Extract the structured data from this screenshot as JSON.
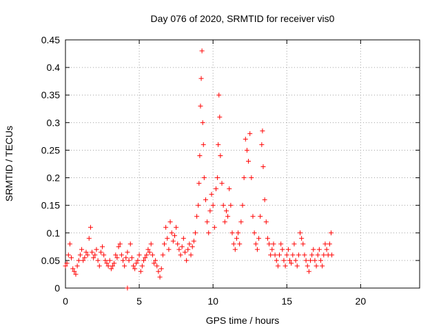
{
  "chart_data": {
    "type": "scatter",
    "title": "Day 076 of 2020, SRMTID for receiver vis0",
    "xlabel": "GPS time / hours",
    "ylabel": "SRMTID / TECUs",
    "xlim": [
      0,
      24
    ],
    "ylim": [
      0,
      0.45
    ],
    "xticks": [
      "0",
      "5",
      "10",
      "15",
      "20"
    ],
    "xtick_values": [
      0,
      5,
      10,
      15,
      20
    ],
    "yticks": [
      "0",
      "0.05",
      "0.1",
      "0.15",
      "0.2",
      "0.25",
      "0.3",
      "0.35",
      "0.4",
      "0.45"
    ],
    "ytick_values": [
      0,
      0.05,
      0.1,
      0.15,
      0.2,
      0.25,
      0.3,
      0.35,
      0.4,
      0.45
    ],
    "grid": true,
    "marker": "plus",
    "color": "#ff0000",
    "series": [
      {
        "name": "vis0",
        "points": [
          [
            0.0,
            0.04
          ],
          [
            0.1,
            0.045
          ],
          [
            0.2,
            0.06
          ],
          [
            0.3,
            0.08
          ],
          [
            0.4,
            0.055
          ],
          [
            0.5,
            0.035
          ],
          [
            0.6,
            0.03
          ],
          [
            0.7,
            0.025
          ],
          [
            0.8,
            0.04
          ],
          [
            0.9,
            0.05
          ],
          [
            1.0,
            0.06
          ],
          [
            1.1,
            0.07
          ],
          [
            1.2,
            0.05
          ],
          [
            1.3,
            0.055
          ],
          [
            1.4,
            0.065
          ],
          [
            1.5,
            0.06
          ],
          [
            1.6,
            0.09
          ],
          [
            1.7,
            0.11
          ],
          [
            1.8,
            0.065
          ],
          [
            1.9,
            0.055
          ],
          [
            2.0,
            0.06
          ],
          [
            2.1,
            0.07
          ],
          [
            2.2,
            0.05
          ],
          [
            2.3,
            0.04
          ],
          [
            2.4,
            0.065
          ],
          [
            2.5,
            0.075
          ],
          [
            2.6,
            0.06
          ],
          [
            2.7,
            0.05
          ],
          [
            2.8,
            0.045
          ],
          [
            2.9,
            0.04
          ],
          [
            3.0,
            0.05
          ],
          [
            3.1,
            0.035
          ],
          [
            3.2,
            0.04
          ],
          [
            3.3,
            0.045
          ],
          [
            3.4,
            0.06
          ],
          [
            3.5,
            0.055
          ],
          [
            3.6,
            0.075
          ],
          [
            3.7,
            0.08
          ],
          [
            3.8,
            0.06
          ],
          [
            3.9,
            0.05
          ],
          [
            4.0,
            0.04
          ],
          [
            4.1,
            0.055
          ],
          [
            4.2,
            0.065
          ],
          [
            4.3,
            0.05
          ],
          [
            4.4,
            0.08
          ],
          [
            4.5,
            0.055
          ],
          [
            4.6,
            0.04
          ],
          [
            4.7,
            0.035
          ],
          [
            4.8,
            0.045
          ],
          [
            4.9,
            0.05
          ],
          [
            5.0,
            0.06
          ],
          [
            5.1,
            0.03
          ],
          [
            5.2,
            0.04
          ],
          [
            5.3,
            0.05
          ],
          [
            5.4,
            0.055
          ],
          [
            5.5,
            0.06
          ],
          [
            5.6,
            0.07
          ],
          [
            5.7,
            0.065
          ],
          [
            5.8,
            0.08
          ],
          [
            5.9,
            0.06
          ],
          [
            6.0,
            0.045
          ],
          [
            6.1,
            0.05
          ],
          [
            6.2,
            0.04
          ],
          [
            6.3,
            0.03
          ],
          [
            6.4,
            0.02
          ],
          [
            6.5,
            0.035
          ],
          [
            6.6,
            0.06
          ],
          [
            6.7,
            0.08
          ],
          [
            6.8,
            0.11
          ],
          [
            6.9,
            0.09
          ],
          [
            7.0,
            0.07
          ],
          [
            7.1,
            0.12
          ],
          [
            7.2,
            0.1
          ],
          [
            7.3,
            0.085
          ],
          [
            7.4,
            0.095
          ],
          [
            7.5,
            0.11
          ],
          [
            7.6,
            0.08
          ],
          [
            7.7,
            0.07
          ],
          [
            7.8,
            0.06
          ],
          [
            7.9,
            0.075
          ],
          [
            8.0,
            0.09
          ],
          [
            8.1,
            0.065
          ],
          [
            8.2,
            0.05
          ],
          [
            8.3,
            0.07
          ],
          [
            8.4,
            0.08
          ],
          [
            8.5,
            0.06
          ],
          [
            8.6,
            0.075
          ],
          [
            8.7,
            0.085
          ],
          [
            8.8,
            0.1
          ],
          [
            8.9,
            0.13
          ],
          [
            9.0,
            0.15
          ],
          [
            9.05,
            0.19
          ],
          [
            9.1,
            0.24
          ],
          [
            9.15,
            0.33
          ],
          [
            9.2,
            0.38
          ],
          [
            9.25,
            0.43
          ],
          [
            9.3,
            0.3
          ],
          [
            9.35,
            0.26
          ],
          [
            9.4,
            0.2
          ],
          [
            9.5,
            0.16
          ],
          [
            9.6,
            0.12
          ],
          [
            9.7,
            0.1
          ],
          [
            9.8,
            0.14
          ],
          [
            9.9,
            0.17
          ],
          [
            10.0,
            0.15
          ],
          [
            10.1,
            0.11
          ],
          [
            10.2,
            0.18
          ],
          [
            10.3,
            0.2
          ],
          [
            10.35,
            0.26
          ],
          [
            10.4,
            0.35
          ],
          [
            10.45,
            0.31
          ],
          [
            10.5,
            0.24
          ],
          [
            10.6,
            0.19
          ],
          [
            10.7,
            0.15
          ],
          [
            10.8,
            0.12
          ],
          [
            10.9,
            0.14
          ],
          [
            11.0,
            0.13
          ],
          [
            11.1,
            0.18
          ],
          [
            11.2,
            0.15
          ],
          [
            11.3,
            0.1
          ],
          [
            11.4,
            0.08
          ],
          [
            11.5,
            0.07
          ],
          [
            11.6,
            0.09
          ],
          [
            11.7,
            0.1
          ],
          [
            11.8,
            0.08
          ],
          [
            11.9,
            0.12
          ],
          [
            12.0,
            0.15
          ],
          [
            12.1,
            0.2
          ],
          [
            12.2,
            0.27
          ],
          [
            12.3,
            0.25
          ],
          [
            12.4,
            0.23
          ],
          [
            12.5,
            0.28
          ],
          [
            12.6,
            0.2
          ],
          [
            12.7,
            0.13
          ],
          [
            12.8,
            0.1
          ],
          [
            12.9,
            0.08
          ],
          [
            13.0,
            0.07
          ],
          [
            13.1,
            0.09
          ],
          [
            13.2,
            0.13
          ],
          [
            13.3,
            0.26
          ],
          [
            13.35,
            0.285
          ],
          [
            13.4,
            0.22
          ],
          [
            13.5,
            0.16
          ],
          [
            13.6,
            0.12
          ],
          [
            13.7,
            0.09
          ],
          [
            13.8,
            0.08
          ],
          [
            13.9,
            0.06
          ],
          [
            14.0,
            0.07
          ],
          [
            14.1,
            0.08
          ],
          [
            14.2,
            0.06
          ],
          [
            14.3,
            0.05
          ],
          [
            14.4,
            0.04
          ],
          [
            14.5,
            0.06
          ],
          [
            14.6,
            0.08
          ],
          [
            14.7,
            0.07
          ],
          [
            14.8,
            0.05
          ],
          [
            14.9,
            0.04
          ],
          [
            15.0,
            0.06
          ],
          [
            15.1,
            0.07
          ],
          [
            15.2,
            0.05
          ],
          [
            15.3,
            0.045
          ],
          [
            15.4,
            0.06
          ],
          [
            15.5,
            0.08
          ],
          [
            15.6,
            0.05
          ],
          [
            15.7,
            0.04
          ],
          [
            15.8,
            0.06
          ],
          [
            15.9,
            0.1
          ],
          [
            16.0,
            0.09
          ],
          [
            16.1,
            0.08
          ],
          [
            16.2,
            0.06
          ],
          [
            16.3,
            0.05
          ],
          [
            16.4,
            0.04
          ],
          [
            16.5,
            0.03
          ],
          [
            16.6,
            0.05
          ],
          [
            16.7,
            0.06
          ],
          [
            16.8,
            0.07
          ],
          [
            16.9,
            0.05
          ],
          [
            17.0,
            0.04
          ],
          [
            17.1,
            0.06
          ],
          [
            17.2,
            0.07
          ],
          [
            17.3,
            0.05
          ],
          [
            17.4,
            0.04
          ],
          [
            17.5,
            0.06
          ],
          [
            17.6,
            0.08
          ],
          [
            17.7,
            0.07
          ],
          [
            17.8,
            0.06
          ],
          [
            17.9,
            0.08
          ],
          [
            18.0,
            0.1
          ],
          [
            18.05,
            0.06
          ],
          [
            4.2,
            0.0
          ]
        ]
      }
    ]
  }
}
